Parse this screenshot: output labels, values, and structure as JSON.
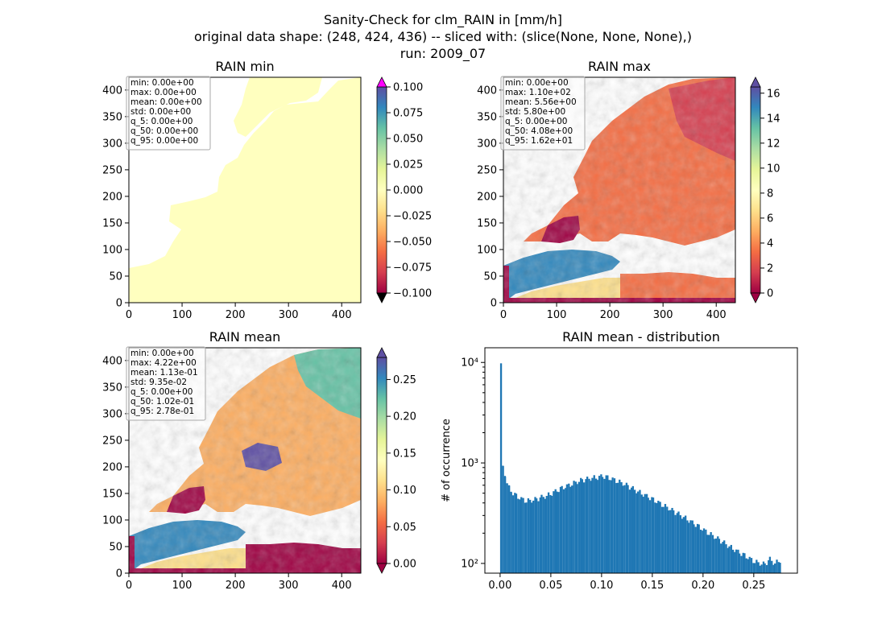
{
  "figure": {
    "title_line1": "Sanity-Check for clm_RAIN in [mm/h]",
    "title_line2": "original data shape: (248, 424, 436) -- sliced with: (slice(None, None, None),)",
    "title_line3": "run: 2009_07"
  },
  "colors": {
    "spectral": [
      "#9e0142",
      "#d53e4f",
      "#f46d43",
      "#fdae61",
      "#fee08b",
      "#ffffbf",
      "#e6f598",
      "#abdda4",
      "#66c2a5",
      "#3288bd",
      "#5e4fa2"
    ],
    "under_min_panel": "#000000",
    "over_min_panel": "#ff00ff",
    "hist_bar": "#1f77b4",
    "const_field": "#ffffbf"
  },
  "chart_data": [
    {
      "type": "heatmap",
      "title": "RAIN min",
      "xlim": [
        0,
        436
      ],
      "ylim": [
        0,
        424
      ],
      "xticks": [
        "0",
        "100",
        "200",
        "300",
        "400"
      ],
      "yticks": [
        "0",
        "50",
        "100",
        "150",
        "200",
        "250",
        "300",
        "350",
        "400"
      ],
      "field": "constant zero over land and sea domain",
      "colorbar": {
        "range": [
          -0.1,
          0.1
        ],
        "extend": "both",
        "ticks": [
          "0.100",
          "0.075",
          "0.050",
          "0.025",
          "0.000",
          "−0.025",
          "−0.050",
          "−0.075",
          "−0.100"
        ]
      },
      "stats": [
        "min: 0.00e+00",
        "max: 0.00e+00",
        "mean: 0.00e+00",
        "std: 0.00e+00",
        "q_5: 0.00e+00",
        "q_50: 0.00e+00",
        "q_95: 0.00e+00"
      ]
    },
    {
      "type": "heatmap",
      "title": "RAIN max",
      "xlim": [
        0,
        436
      ],
      "ylim": [
        0,
        424
      ],
      "xticks": [
        "0",
        "100",
        "200",
        "300",
        "400"
      ],
      "yticks": [
        "0",
        "50",
        "100",
        "150",
        "200",
        "250",
        "300",
        "350",
        "400"
      ],
      "colorbar": {
        "range": [
          0,
          16.5
        ],
        "extend": "both",
        "ticks": [
          "16",
          "14",
          "12",
          "10",
          "8",
          "6",
          "4",
          "2",
          "0"
        ]
      },
      "stats": [
        "min: 0.00e+00",
        "max: 1.10e+02",
        "mean: 5.56e+00",
        "std: 5.80e+00",
        "q_5: 0.00e+00",
        "q_50: 4.08e+00",
        "q_95: 1.62e+01"
      ]
    },
    {
      "type": "heatmap",
      "title": "RAIN mean",
      "xlim": [
        0,
        436
      ],
      "ylim": [
        0,
        424
      ],
      "xticks": [
        "0",
        "100",
        "200",
        "300",
        "400"
      ],
      "yticks": [
        "0",
        "50",
        "100",
        "150",
        "200",
        "250",
        "300",
        "350",
        "400"
      ],
      "colorbar": {
        "range": [
          0,
          0.28
        ],
        "extend": "both",
        "ticks": [
          "0.25",
          "0.20",
          "0.15",
          "0.10",
          "0.05",
          "0.00"
        ]
      },
      "stats": [
        "min: 0.00e+00",
        "max: 4.22e+00",
        "mean: 1.13e-01",
        "std: 9.35e-02",
        "q_5: 0.00e+00",
        "q_50: 1.02e-01",
        "q_95: 2.78e-01"
      ]
    },
    {
      "type": "bar",
      "title": "RAIN mean - distribution",
      "ylabel": "# of occurrence",
      "yscale": "log",
      "xlim": [
        -0.015,
        0.293
      ],
      "ylim": [
        80,
        14000
      ],
      "xticks": [
        "0.00",
        "0.05",
        "0.10",
        "0.15",
        "0.20",
        "0.25"
      ],
      "yticks": [
        "10²",
        "10³",
        "10⁴"
      ],
      "bin_width": 0.00185,
      "bins": [
        [
          0.0,
          9800
        ],
        [
          0.002,
          880
        ],
        [
          0.004,
          760
        ],
        [
          0.006,
          640
        ],
        [
          0.008,
          560
        ],
        [
          0.01,
          520
        ],
        [
          0.015,
          470
        ],
        [
          0.02,
          440
        ],
        [
          0.025,
          420
        ],
        [
          0.03,
          425
        ],
        [
          0.035,
          435
        ],
        [
          0.04,
          455
        ],
        [
          0.045,
          470
        ],
        [
          0.05,
          500
        ],
        [
          0.055,
          530
        ],
        [
          0.06,
          560
        ],
        [
          0.065,
          590
        ],
        [
          0.07,
          620
        ],
        [
          0.075,
          650
        ],
        [
          0.08,
          675
        ],
        [
          0.085,
          690
        ],
        [
          0.09,
          710
        ],
        [
          0.095,
          720
        ],
        [
          0.1,
          740
        ],
        [
          0.105,
          715
        ],
        [
          0.11,
          690
        ],
        [
          0.115,
          660
        ],
        [
          0.12,
          625
        ],
        [
          0.125,
          590
        ],
        [
          0.13,
          555
        ],
        [
          0.135,
          520
        ],
        [
          0.14,
          490
        ],
        [
          0.145,
          460
        ],
        [
          0.15,
          430
        ],
        [
          0.155,
          405
        ],
        [
          0.16,
          380
        ],
        [
          0.165,
          355
        ],
        [
          0.17,
          330
        ],
        [
          0.175,
          310
        ],
        [
          0.18,
          290
        ],
        [
          0.185,
          270
        ],
        [
          0.19,
          250
        ],
        [
          0.195,
          232
        ],
        [
          0.2,
          215
        ],
        [
          0.205,
          200
        ],
        [
          0.21,
          185
        ],
        [
          0.215,
          172
        ],
        [
          0.22,
          160
        ],
        [
          0.225,
          148
        ],
        [
          0.23,
          138
        ],
        [
          0.235,
          128
        ],
        [
          0.24,
          120
        ],
        [
          0.245,
          112
        ],
        [
          0.25,
          105
        ],
        [
          0.255,
          100
        ],
        [
          0.26,
          98
        ],
        [
          0.265,
          110
        ],
        [
          0.27,
          100
        ],
        [
          0.275,
          108
        ]
      ]
    }
  ]
}
